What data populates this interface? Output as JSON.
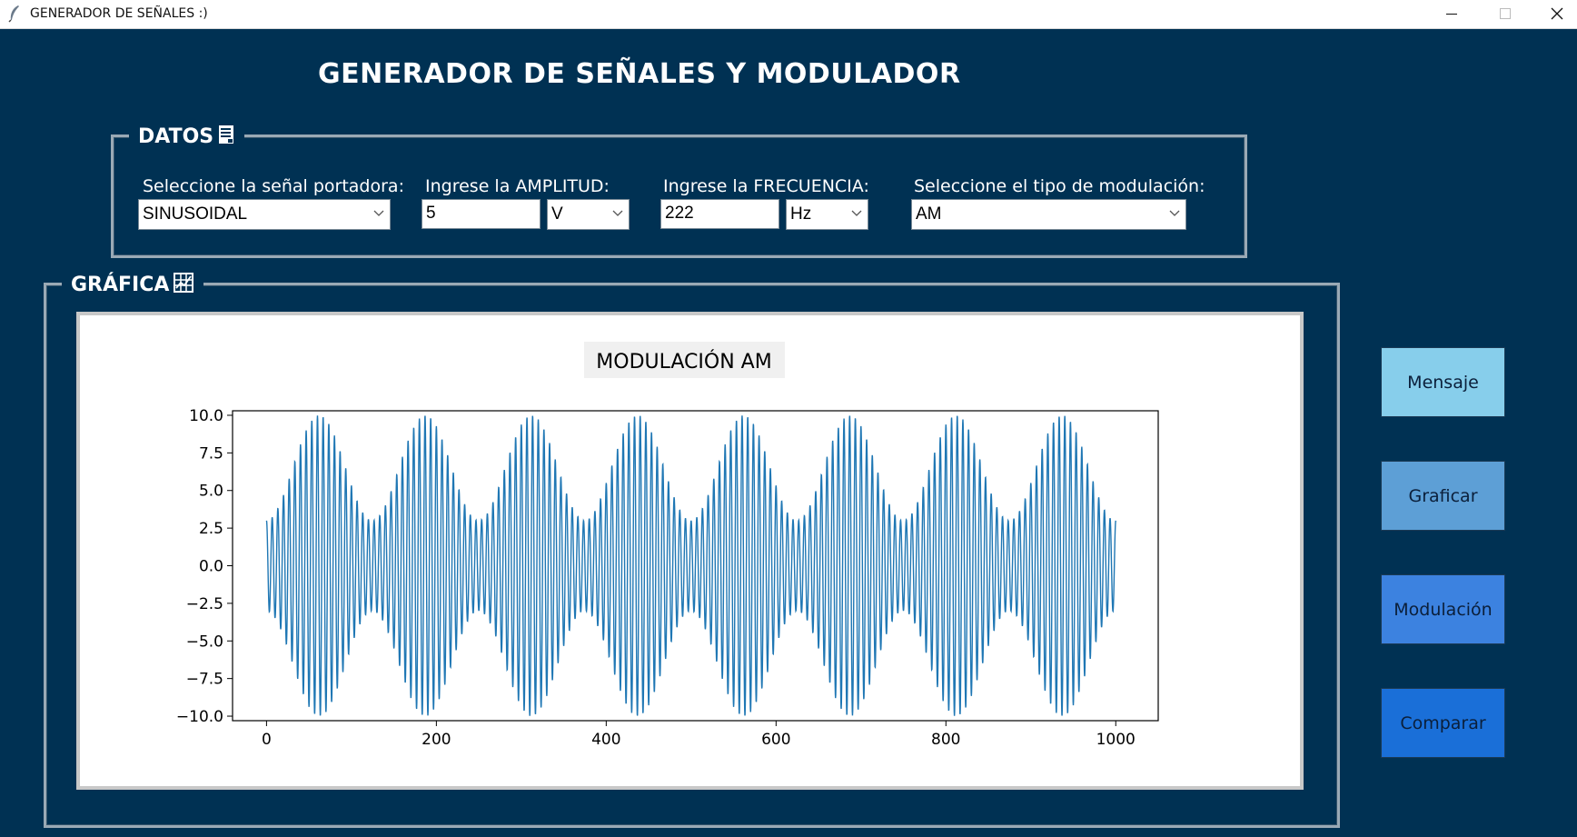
{
  "window": {
    "title": "GENERADOR DE SEÑALES :)",
    "icon": "feather-icon"
  },
  "header": {
    "title": "GENERADOR DE SEÑALES Y MODULADOR"
  },
  "datos": {
    "legend": "DATOS",
    "legend_icon": "notepad-icon",
    "carrier": {
      "label": "Seleccione la señal portadora:",
      "value": "SINUSOIDAL"
    },
    "amplitude": {
      "label": "Ingrese la AMPLITUD:",
      "value": "5",
      "unit": "V"
    },
    "frequency": {
      "label": "Ingrese la FRECUENCIA:",
      "value": "222",
      "unit": "Hz"
    },
    "modulation": {
      "label": "Seleccione el tipo de modulación:",
      "value": "AM"
    }
  },
  "grafica": {
    "legend": "GRÁFICA",
    "legend_icon": "grid-chart-icon"
  },
  "buttons": {
    "mensaje": {
      "label": "Mensaje",
      "color": "#87ceeb"
    },
    "graficar": {
      "label": "Graficar",
      "color": "#5d9fd6"
    },
    "modulacion": {
      "label": "Modulación",
      "color": "#3c82e0"
    },
    "comparar": {
      "label": "Comparar",
      "color": "#1a6fd8"
    }
  },
  "chart_data": {
    "type": "line",
    "title": "MODULACIÓN AM",
    "xlabel": "",
    "ylabel": "",
    "xlim": [
      -40,
      1050
    ],
    "ylim": [
      -10.3,
      10.3
    ],
    "xticks": [
      0,
      200,
      400,
      600,
      800,
      1000
    ],
    "xtick_labels": [
      "0",
      "200",
      "400",
      "600",
      "800",
      "1000"
    ],
    "yticks": [
      10.0,
      7.5,
      5.0,
      2.5,
      0.0,
      -2.5,
      -5.0,
      -7.5,
      -10.0
    ],
    "ytick_labels": [
      "10.0",
      "7.5",
      "5.0",
      "2.5",
      "0.0",
      "−2.5",
      "−5.0",
      "−7.5",
      "−10.0"
    ],
    "grid": false,
    "line_color": "#1f77b4",
    "series": [
      {
        "carrier_cycles_per_1000": 150,
        "envelope_period": 125,
        "envelope_min": 3.0,
        "envelope_max": 10.0,
        "x_range": [
          0,
          1000
        ],
        "envelope_peaks_at": [
          62,
          187,
          312,
          437,
          562,
          687,
          812,
          937
        ]
      }
    ]
  }
}
